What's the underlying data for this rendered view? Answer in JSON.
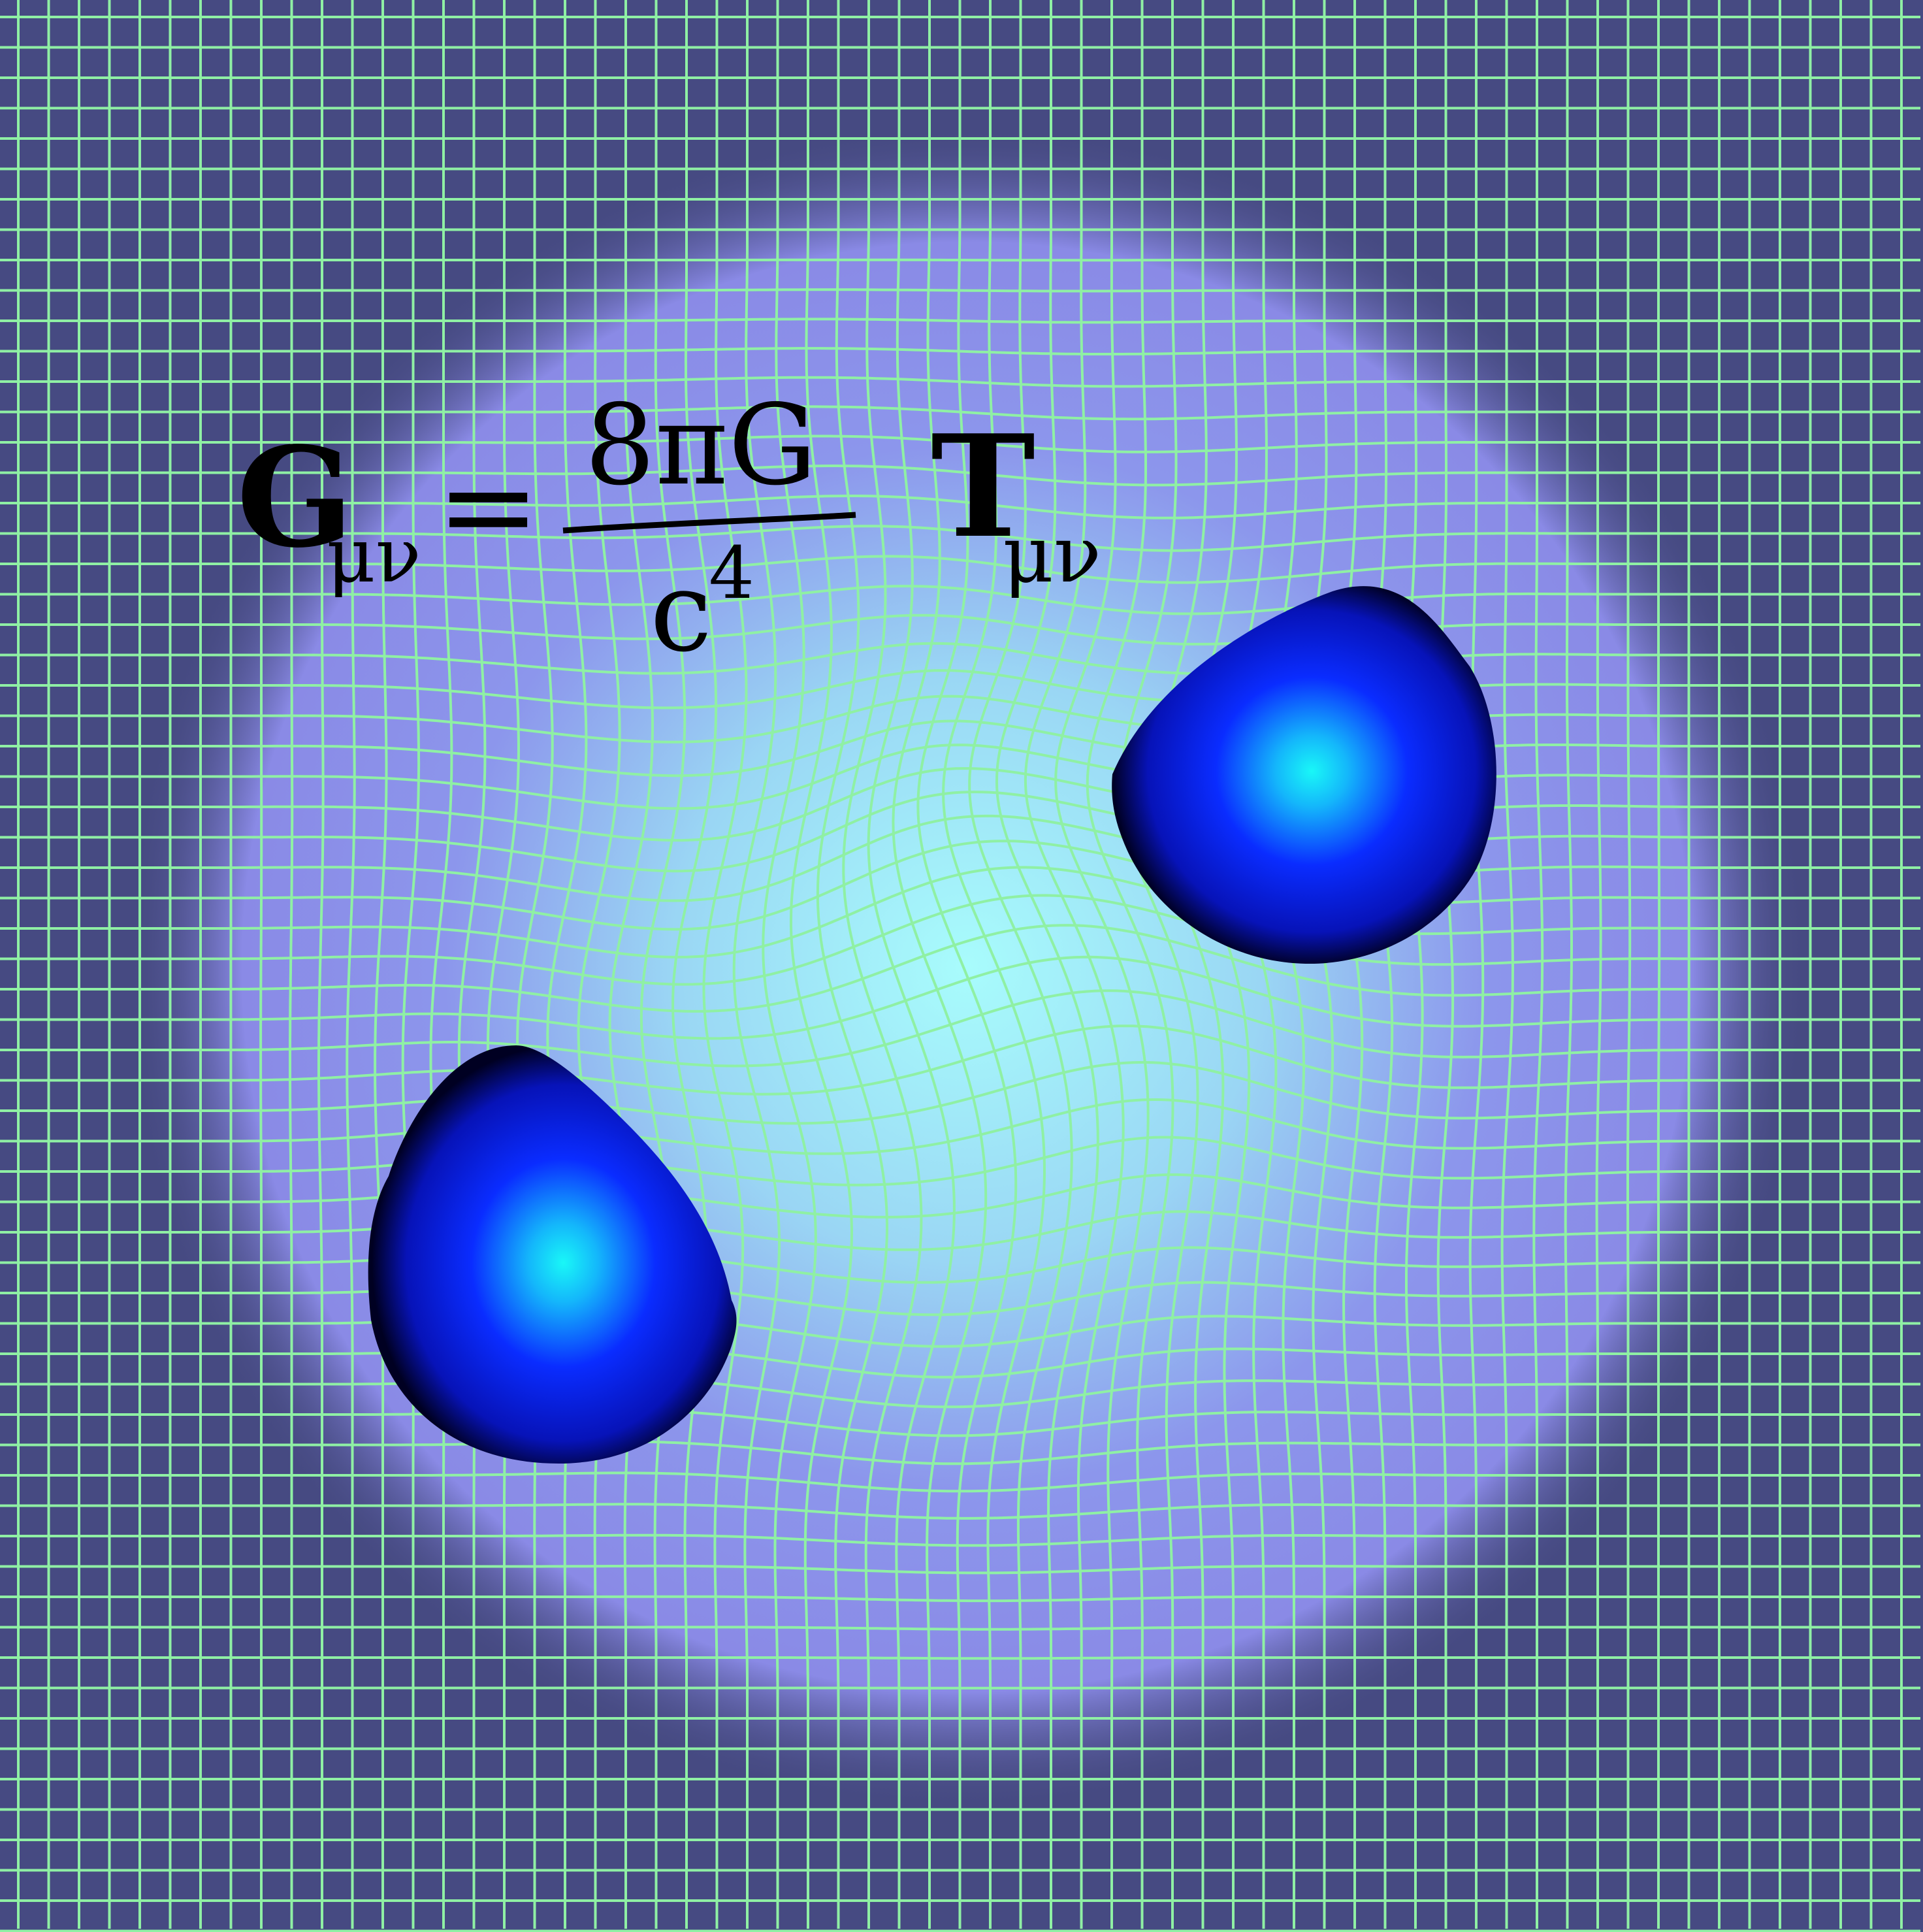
{
  "equation": {
    "lhs_symbol": "G",
    "lhs_subscript": "μν",
    "equals": "=",
    "numerator": "8πG",
    "denominator_base": "c",
    "denominator_exponent": "4",
    "rhs_symbol": "T",
    "rhs_subscript": "μν"
  },
  "colors": {
    "outer_background": "#464a82",
    "glow_mid": "#8a8ae6",
    "glow_center": "#a8fcfc",
    "grid_line": "#8ff0a4",
    "sphere_core": "#19f7f7",
    "sphere_mid": "#0a2cff",
    "sphere_edge": "#000022",
    "equation_ink": "#000000"
  },
  "objects": {
    "mass_left": "blue-sphere",
    "mass_right": "blue-sphere",
    "grid": "warped-spacetime-grid"
  }
}
